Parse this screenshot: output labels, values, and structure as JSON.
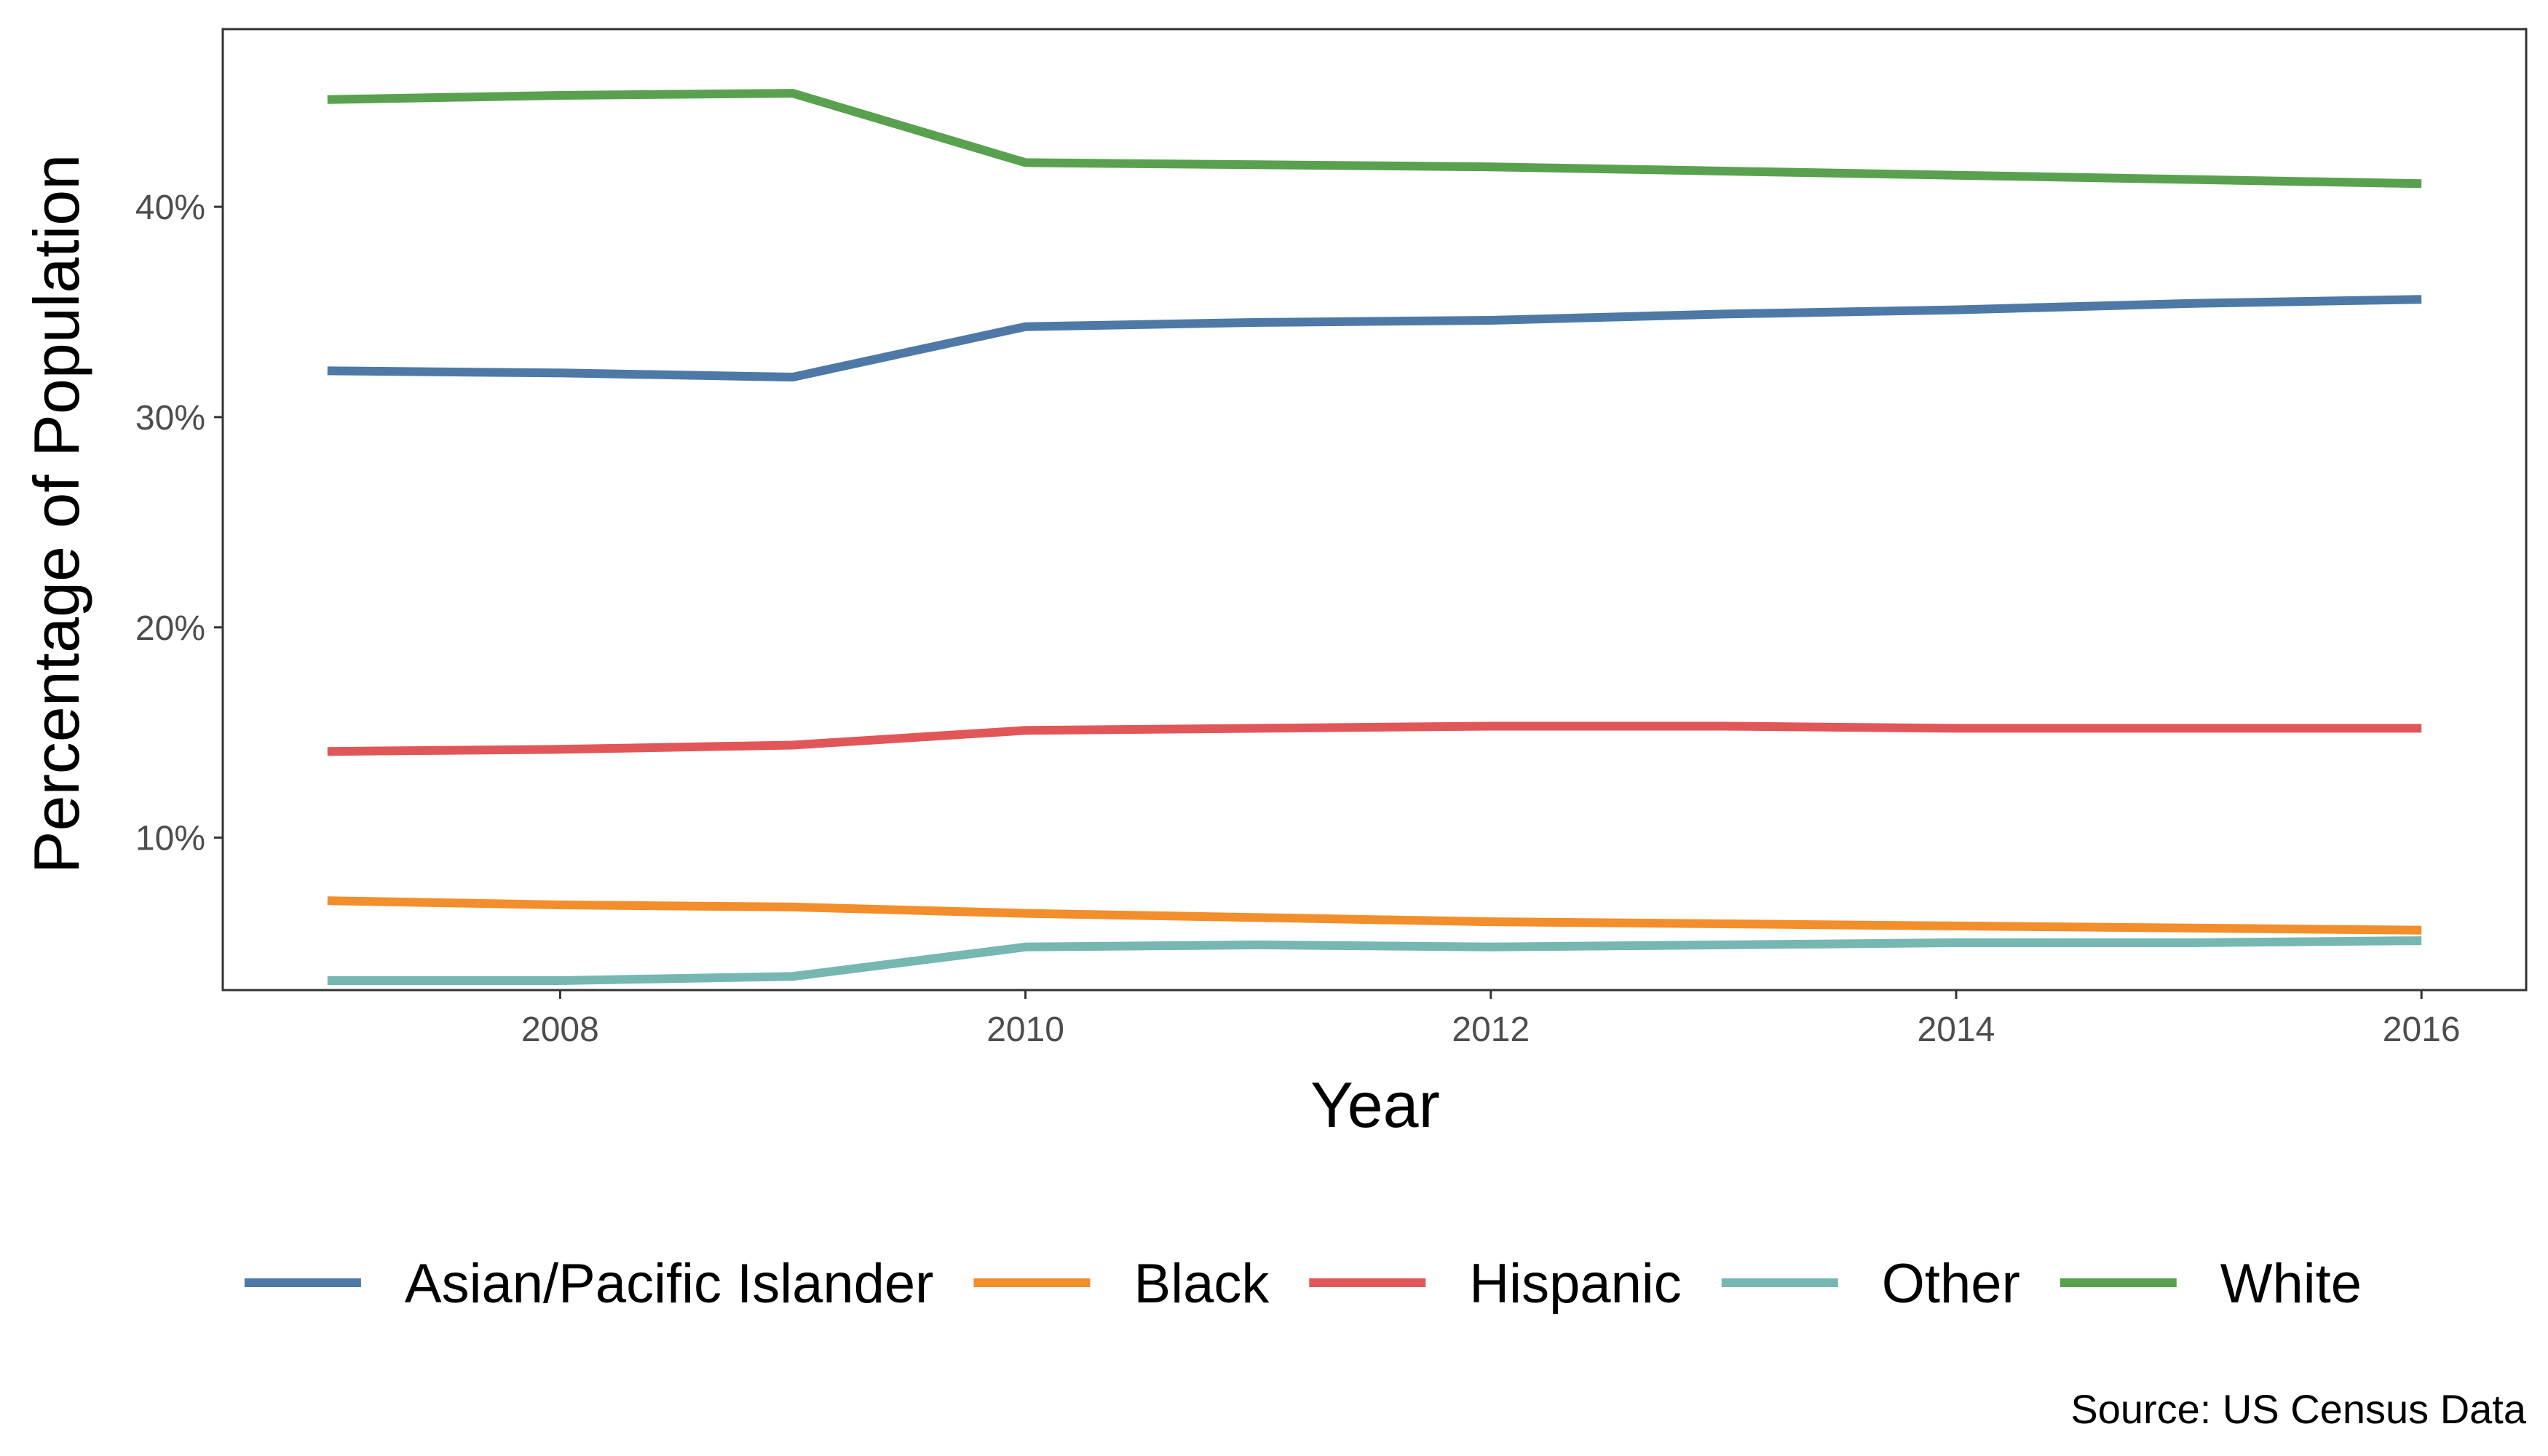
{
  "chart_data": {
    "type": "line",
    "title": "",
    "xlabel": "Year",
    "ylabel": "Percentage of Population",
    "caption": "Source: US Census Data",
    "x": [
      2007,
      2008,
      2009,
      2010,
      2011,
      2012,
      2013,
      2014,
      2015,
      2016
    ],
    "xticks": [
      2008,
      2010,
      2012,
      2014,
      2016
    ],
    "yticks": [
      10,
      20,
      30,
      40
    ],
    "ytick_labels": [
      "10%",
      "20%",
      "30%",
      "40%"
    ],
    "xlim": [
      2006.55,
      2016.45
    ],
    "ylim": [
      2.75,
      48.45
    ],
    "grid": false,
    "legend_position": "bottom",
    "series": [
      {
        "name": "Asian/Pacific Islander",
        "color": "#4e79a7",
        "values": [
          32.2,
          32.1,
          31.9,
          34.3,
          34.5,
          34.6,
          34.9,
          35.1,
          35.4,
          35.6
        ]
      },
      {
        "name": "Black",
        "color": "#f28e2b",
        "values": [
          7.0,
          6.8,
          6.7,
          6.4,
          6.2,
          6.0,
          5.9,
          5.8,
          5.7,
          5.6
        ]
      },
      {
        "name": "Hispanic",
        "color": "#e15759",
        "values": [
          14.1,
          14.2,
          14.4,
          15.1,
          15.2,
          15.3,
          15.3,
          15.2,
          15.2,
          15.2
        ]
      },
      {
        "name": "Other",
        "color": "#76b7b2",
        "values": [
          3.2,
          3.2,
          3.4,
          4.8,
          4.9,
          4.8,
          4.9,
          5.0,
          5.0,
          5.1
        ]
      },
      {
        "name": "White",
        "color": "#59a14f",
        "values": [
          45.1,
          45.3,
          45.4,
          42.1,
          42.0,
          41.9,
          41.7,
          41.5,
          41.3,
          41.1
        ]
      }
    ]
  }
}
